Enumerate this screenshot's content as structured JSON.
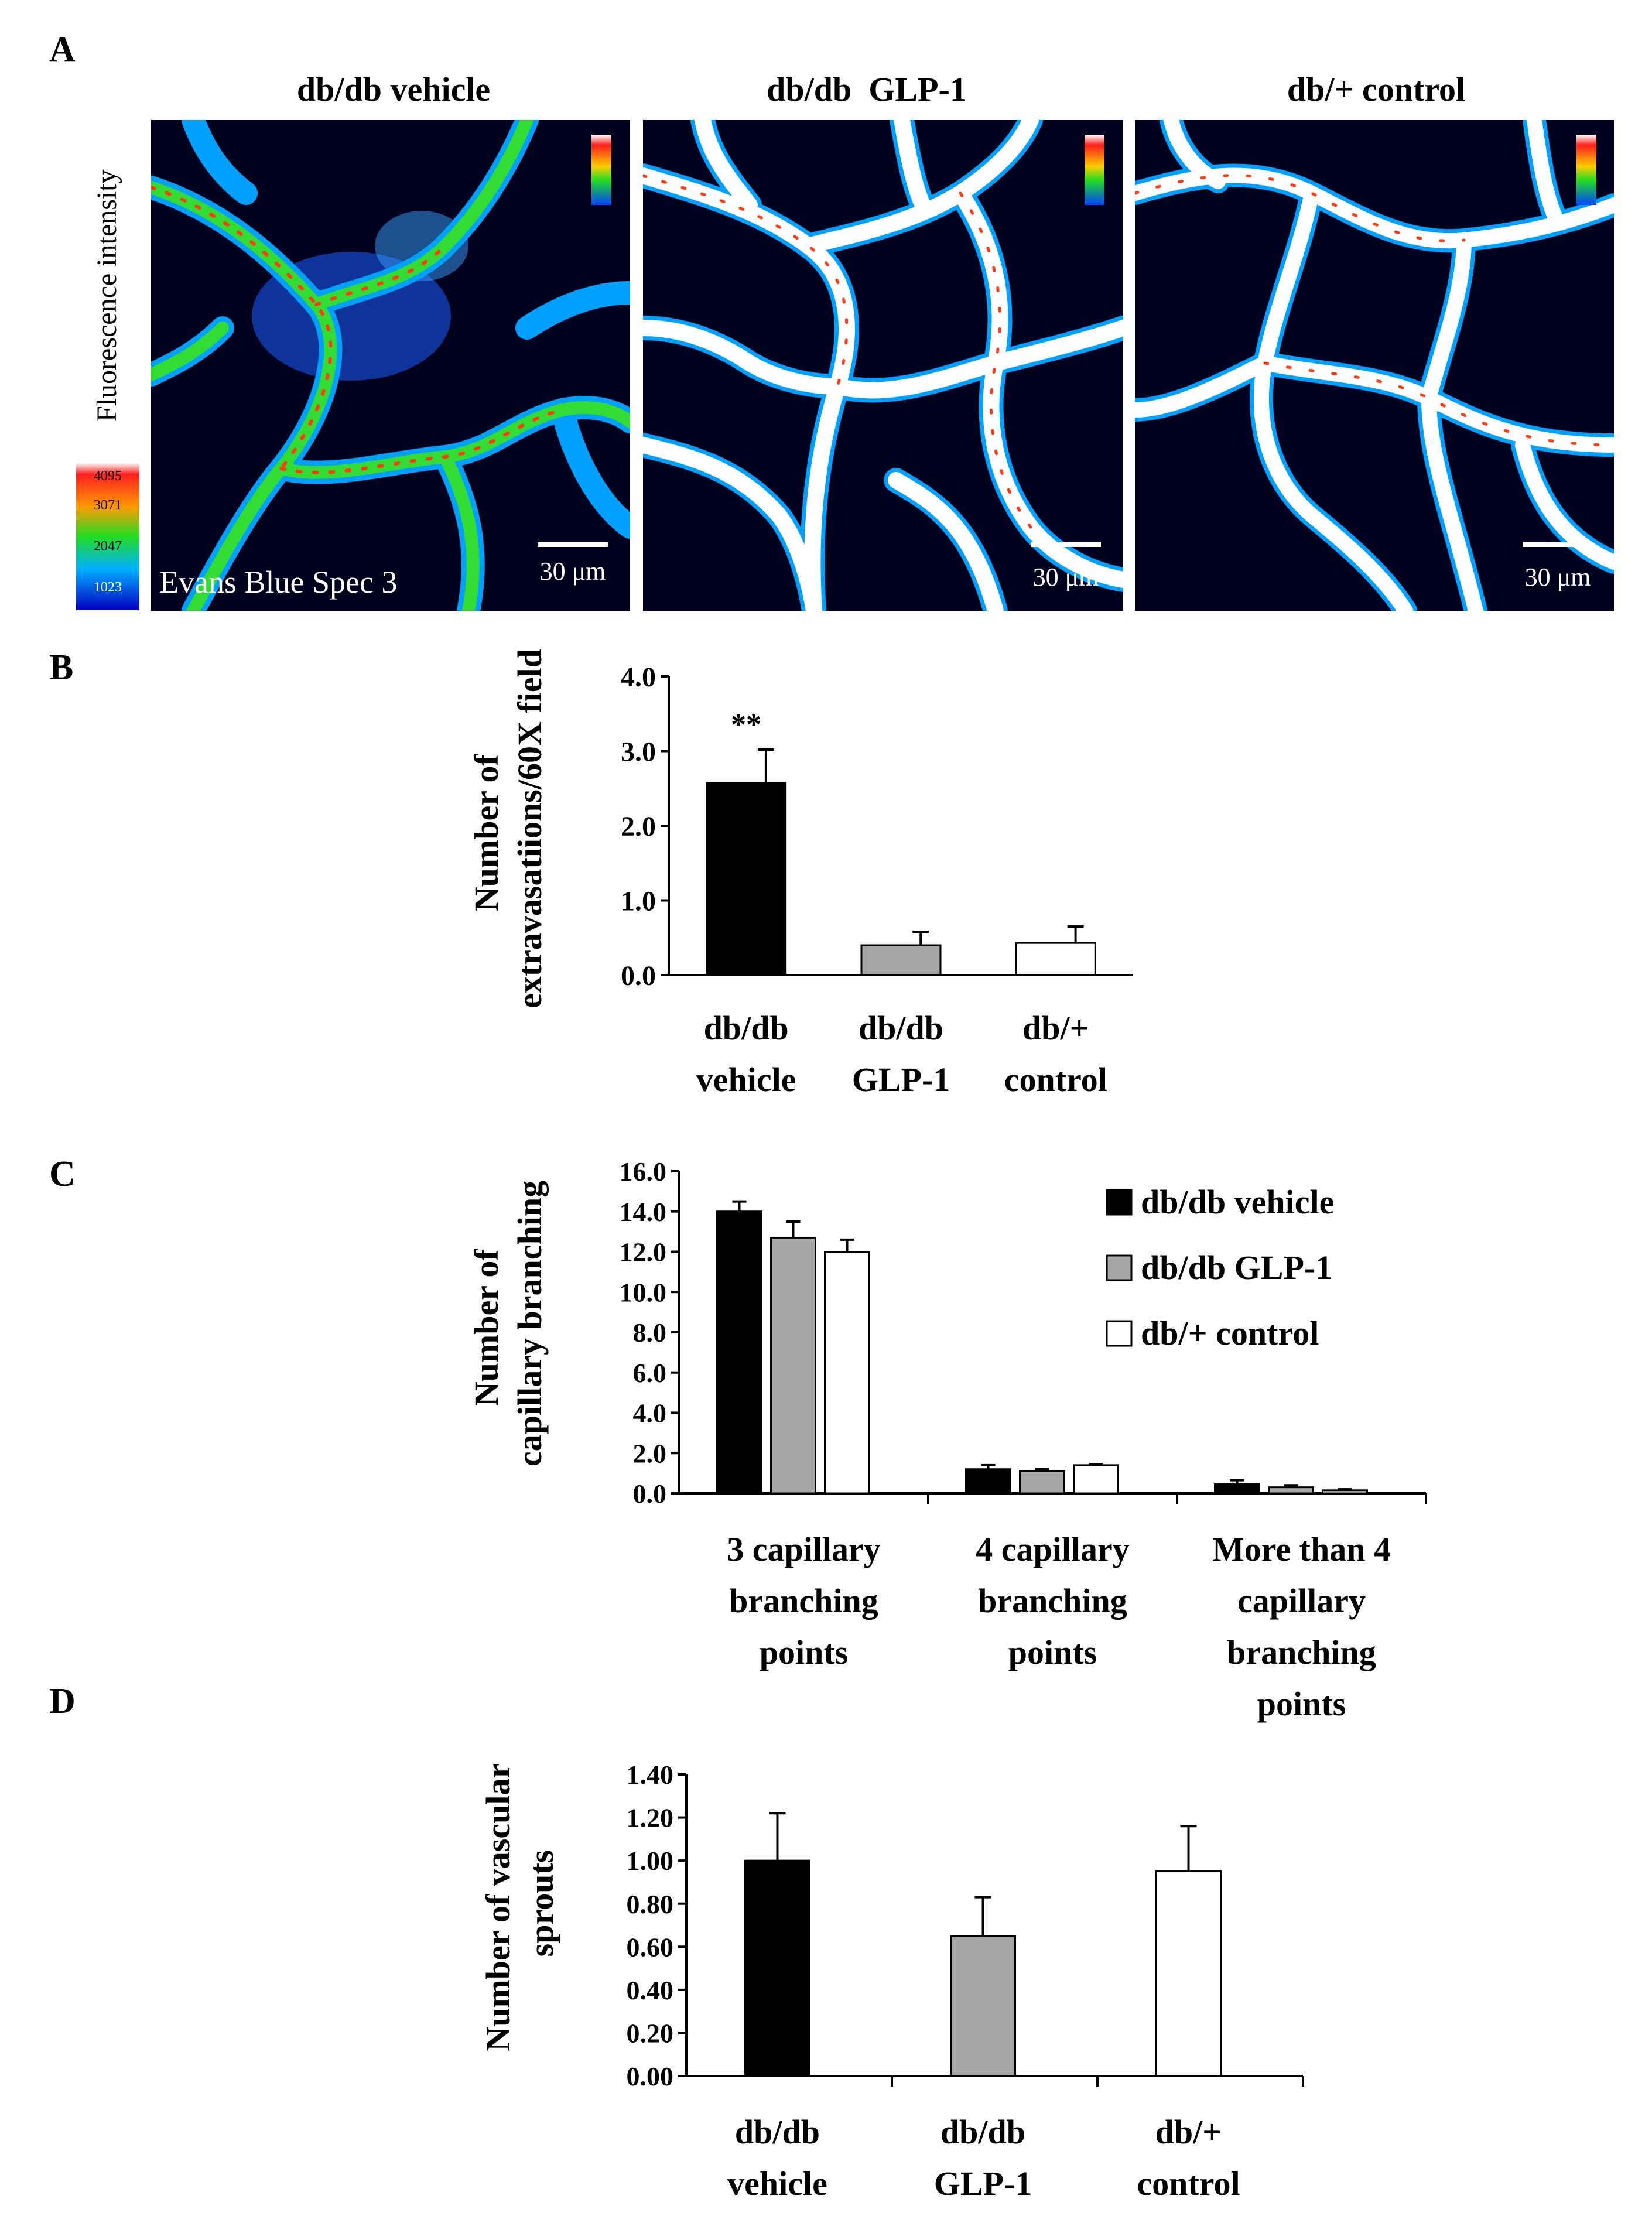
{
  "panel_labels": {
    "a": "A",
    "b": "B",
    "c": "C",
    "d": "D"
  },
  "panel_a": {
    "titles": [
      "db/db vehicle",
      "db/db  GLP-1",
      "db/+ control"
    ],
    "colorbar_title": "Fluorescence intensity",
    "colorbar_ticks": [
      "4095",
      "3071",
      "2047",
      "1023"
    ],
    "image_label": "Evans Blue Spec 3",
    "scale_bar": "30 μm",
    "colors": {
      "background": "#00001e",
      "vessel_core": "#ffffff",
      "edge": "#00a0ff",
      "mid": "#32dc32",
      "hot": "#ff3c14"
    }
  },
  "chart_data": [
    {
      "panel": "B",
      "type": "bar",
      "categories": [
        [
          "db/db",
          "vehicle"
        ],
        [
          "db/db",
          "GLP-1"
        ],
        [
          "db/+",
          "control"
        ]
      ],
      "values": [
        2.57,
        0.4,
        0.43
      ],
      "errors": [
        0.45,
        0.18,
        0.22
      ],
      "fills": [
        "#000000",
        "#a6a6a6",
        "#ffffff"
      ],
      "annotations": [
        "**",
        "",
        ""
      ],
      "yticks": [
        "4.0",
        "3.0",
        "2.0",
        "1.0",
        "0.0"
      ],
      "ylim": [
        0,
        4
      ],
      "ylabel": [
        "Number of",
        "extravasatiions/60X field"
      ]
    },
    {
      "panel": "C",
      "type": "bar",
      "categories": [
        [
          "3 capillary",
          "branching",
          "points"
        ],
        [
          "4 capillary",
          "branching",
          "points"
        ],
        [
          "More than 4",
          "capillary",
          "branching",
          "points"
        ]
      ],
      "series": [
        {
          "name": "db/db vehicle",
          "color": "#000000",
          "values": [
            14.0,
            1.2,
            0.45
          ],
          "errors": [
            0.5,
            0.2,
            0.2
          ]
        },
        {
          "name": "db/db GLP-1",
          "color": "#a6a6a6",
          "values": [
            12.7,
            1.1,
            0.3
          ],
          "errors": [
            0.8,
            0.1,
            0.1
          ]
        },
        {
          "name": "db/+ control",
          "color": "#ffffff",
          "values": [
            12.0,
            1.4,
            0.15
          ],
          "errors": [
            0.6,
            0.05,
            0.05
          ]
        }
      ],
      "yticks": [
        "16.0",
        "14.0",
        "12.0",
        "10.0",
        "8.0",
        "6.0",
        "4.0",
        "2.0",
        "0.0"
      ],
      "ylim": [
        0,
        16
      ],
      "ylabel": [
        "Number of",
        "capillary branching"
      ],
      "legend_position": "top-right"
    },
    {
      "panel": "D",
      "type": "bar",
      "categories": [
        [
          "db/db",
          "vehicle"
        ],
        [
          "db/db",
          "GLP-1"
        ],
        [
          "db/+",
          "control"
        ]
      ],
      "values": [
        1.0,
        0.65,
        0.95
      ],
      "errors": [
        0.22,
        0.18,
        0.21
      ],
      "fills": [
        "#000000",
        "#a6a6a6",
        "#ffffff"
      ],
      "yticks": [
        "1.40",
        "1.20",
        "1.00",
        "0.80",
        "0.60",
        "0.40",
        "0.20",
        "0.00"
      ],
      "ylim": [
        0,
        1.4
      ],
      "ylabel": [
        "Number of vascular",
        "sprouts"
      ]
    }
  ]
}
